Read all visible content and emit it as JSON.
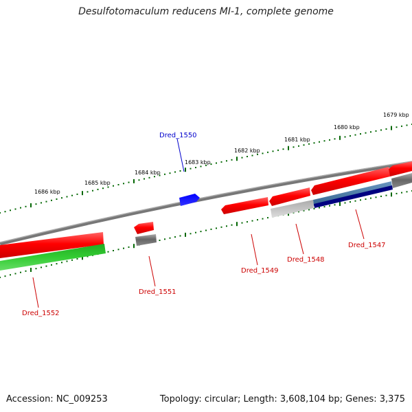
{
  "title": "Desulfotomaculum reducens MI-1, complete genome",
  "footer": {
    "accession": "Accession: NC_009253",
    "summary": "Topology: circular; Length: 3,608,104 bp; Genes: 3,375"
  },
  "colors": {
    "backbone": "#808080",
    "forward_gene": "#ff0000",
    "reverse_gene": "#808080",
    "green_gene": "#33cc33",
    "highlight_gene": "#0000ff",
    "navy_gene": "#000080",
    "steel_gene": "#4682b4",
    "light_gene": "#bbbbbb",
    "tick": "#006600",
    "forward_label": "#cc0000",
    "highlight_label": "#0000cc"
  },
  "scale_labels": [
    "1686 kbp",
    "1685 kbp",
    "1684 kbp",
    "1683 kbp",
    "1682 kbp",
    "1681 kbp",
    "1680 kbp",
    "1679 kbp"
  ],
  "gene_labels": [
    {
      "text": "Dred_1550",
      "color": "highlight_label"
    },
    {
      "text": "Dred_1547",
      "color": "forward_label"
    },
    {
      "text": "Dred_1548",
      "color": "forward_label"
    },
    {
      "text": "Dred_1549",
      "color": "forward_label"
    },
    {
      "text": "Dred_1551",
      "color": "forward_label"
    },
    {
      "text": "Dred_1552",
      "color": "forward_label"
    }
  ]
}
